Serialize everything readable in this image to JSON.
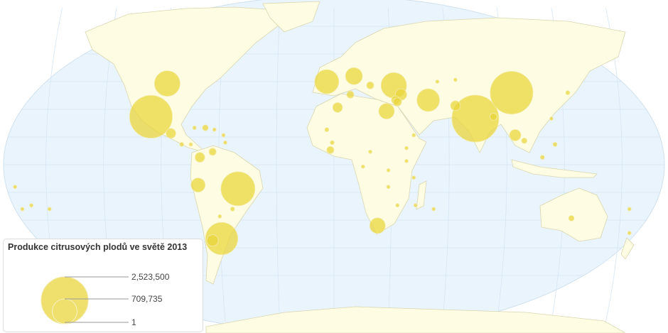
{
  "legend": {
    "title": "Produkce citrusových plodů ve světě 2013",
    "max_label": "2,523,500",
    "mid_label": "709,735",
    "min_label": "1",
    "max_value": 2523500,
    "mid_value": 709735,
    "min_value": 1
  },
  "colors": {
    "ocean": "#eaf4fc",
    "land": "#fefde3",
    "border": "#d9d6b0",
    "bubble": "#ead53c"
  },
  "bubbles": [
    {
      "lon": 78,
      "lat": 25,
      "value": 2523500
    },
    {
      "lon": 98,
      "lat": 39,
      "value": 2100000
    },
    {
      "lon": -101,
      "lat": 26,
      "value": 2100000
    },
    {
      "lon": -53,
      "lat": -13,
      "value": 1330000
    },
    {
      "lon": -62,
      "lat": -40,
      "value": 1200000
    },
    {
      "lon": -92,
      "lat": 44,
      "value": 750000
    },
    {
      "lon": 33,
      "lat": 43,
      "value": 750000
    },
    {
      "lon": -4,
      "lat": 45,
      "value": 670000
    },
    {
      "lon": 52,
      "lat": 35,
      "value": 590000
    },
    {
      "lon": 11,
      "lat": 48,
      "value": 330000
    },
    {
      "lon": 29,
      "lat": 29,
      "value": 280000
    },
    {
      "lon": 24,
      "lat": -33,
      "value": 280000
    },
    {
      "lon": -75,
      "lat": -11,
      "value": 230000
    },
    {
      "lon": 2,
      "lat": 31,
      "value": 110000
    },
    {
      "lon": 100,
      "lat": 16,
      "value": 150000
    },
    {
      "lon": 67,
      "lat": 32,
      "value": 110000
    },
    {
      "lon": -74,
      "lat": 4,
      "value": 110000
    },
    {
      "lon": 37,
      "lat": 38,
      "value": 150000
    },
    {
      "lon": -90,
      "lat": 17,
      "value": 110000
    },
    {
      "lon": -67,
      "lat": -41,
      "value": 150000
    },
    {
      "lon": -67,
      "lat": 7,
      "value": 60000
    },
    {
      "lon": -2,
      "lat": 8,
      "value": 60000
    },
    {
      "lon": -71,
      "lat": 20,
      "value": 40000
    },
    {
      "lon": 131,
      "lat": -29,
      "value": 35000
    },
    {
      "lon": 129,
      "lat": 39,
      "value": 20000
    },
    {
      "lon": 20,
      "lat": 43,
      "value": 60000
    },
    {
      "lon": 34,
      "lat": 35,
      "value": 80000
    },
    {
      "lon": 9,
      "lat": 38,
      "value": 60000
    },
    {
      "lon": 105,
      "lat": 13,
      "value": 35000
    },
    {
      "lon": 115,
      "lat": 4,
      "value": 20000
    },
    {
      "lon": 122,
      "lat": 11,
      "value": 20000
    },
    {
      "lon": 35,
      "lat": 34,
      "value": 80000
    },
    {
      "lon": 88,
      "lat": 26,
      "value": 60000
    },
    {
      "lon": -4,
      "lat": 19,
      "value": 20000
    },
    {
      "lon": -1,
      "lat": 12,
      "value": 20000
    },
    {
      "lon": 20,
      "lat": 7,
      "value": 10000
    },
    {
      "lon": 16,
      "lat": -1,
      "value": 10000
    },
    {
      "lon": 30,
      "lat": -3,
      "value": 10000
    },
    {
      "lon": 40,
      "lat": 2,
      "value": 10000
    },
    {
      "lon": 40,
      "lat": 9,
      "value": 10000
    },
    {
      "lon": 44,
      "lat": 16,
      "value": 10000
    },
    {
      "lon": 30,
      "lat": -12,
      "value": 10000
    },
    {
      "lon": 44,
      "lat": -7,
      "value": 10000
    },
    {
      "lon": 35,
      "lat": -22,
      "value": 10000
    },
    {
      "lon": 45,
      "lat": -22,
      "value": 10000
    },
    {
      "lon": 55,
      "lat": -24,
      "value": 5000
    },
    {
      "lon": -77,
      "lat": 20,
      "value": 15000
    },
    {
      "lon": -66,
      "lat": 19,
      "value": 15000
    },
    {
      "lon": -61,
      "lat": 16,
      "value": 10000
    },
    {
      "lon": -60,
      "lat": 12,
      "value": 10000
    },
    {
      "lon": -84,
      "lat": 11,
      "value": 20000
    },
    {
      "lon": -79,
      "lat": 11,
      "value": 10000
    },
    {
      "lon": -56,
      "lat": -24,
      "value": 20000
    },
    {
      "lon": -63,
      "lat": -28,
      "value": 10000
    },
    {
      "lon": -172,
      "lat": -24,
      "value": 5000
    },
    {
      "lon": -167,
      "lat": -22,
      "value": 5000
    },
    {
      "lon": -157,
      "lat": -24,
      "value": 5000
    },
    {
      "lon": 163,
      "lat": -37,
      "value": 5000
    },
    {
      "lon": 163,
      "lat": -24,
      "value": 5000
    },
    {
      "lon": 57,
      "lat": 45,
      "value": 5000
    },
    {
      "lon": 67,
      "lat": 46,
      "value": 5000
    },
    {
      "lon": 120,
      "lat": 25,
      "value": 10000
    },
    {
      "lon": -176,
      "lat": -12,
      "value": 5000
    }
  ]
}
